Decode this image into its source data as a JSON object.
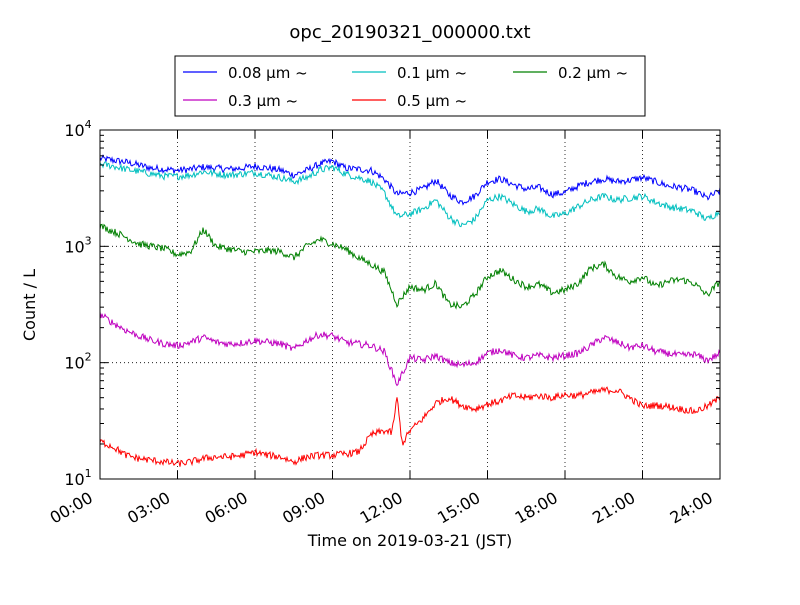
{
  "chart_data": {
    "type": "line",
    "title": "opc_20190321_000000.txt",
    "xlabel": "Time on 2019-03-21 (JST)",
    "ylabel": "Count / L",
    "x_ticks": [
      "00:00",
      "03:00",
      "06:00",
      "09:00",
      "12:00",
      "15:00",
      "18:00",
      "21:00",
      "24:00"
    ],
    "xlim_hours": [
      0,
      24
    ],
    "y_scale": "log",
    "ylim": [
      10,
      10000
    ],
    "y_ticks": [
      {
        "base": "10",
        "exp": "1",
        "value": 10
      },
      {
        "base": "10",
        "exp": "2",
        "value": 100
      },
      {
        "base": "10",
        "exp": "3",
        "value": 1000
      },
      {
        "base": "10",
        "exp": "4",
        "value": 10000
      }
    ],
    "grid": true,
    "legend": "top-center, outside plot",
    "series": [
      {
        "name": "0.08 μm ~",
        "color": "#0000ff",
        "x": [
          0,
          0.5,
          1,
          1.5,
          2,
          2.5,
          3,
          3.5,
          4,
          4.5,
          5,
          5.5,
          6,
          6.5,
          7,
          7.5,
          8,
          8.5,
          9,
          9.5,
          10,
          10.5,
          11,
          11.5,
          12,
          12.5,
          13,
          13.5,
          14,
          14.5,
          15,
          15.5,
          16,
          16.5,
          17,
          17.5,
          18,
          18.5,
          19,
          19.5,
          20,
          20.5,
          21,
          21.5,
          22,
          22.5,
          23,
          23.5,
          24
        ],
        "y": [
          5700,
          5500,
          5300,
          5000,
          4700,
          4600,
          4500,
          4600,
          4800,
          4700,
          4600,
          4700,
          4900,
          4700,
          4500,
          4100,
          4500,
          5100,
          5400,
          4700,
          4600,
          4500,
          3800,
          2800,
          2900,
          3100,
          3700,
          2800,
          2400,
          2700,
          3600,
          3800,
          3400,
          3100,
          3200,
          2800,
          2900,
          3300,
          3600,
          3800,
          3600,
          3700,
          3900,
          3600,
          3300,
          3200,
          3000,
          2600,
          3000
        ]
      },
      {
        "name": "0.1 μm ~",
        "color": "#00bfbf",
        "x": [
          0,
          0.5,
          1,
          1.5,
          2,
          2.5,
          3,
          3.5,
          4,
          4.5,
          5,
          5.5,
          6,
          6.5,
          7,
          7.5,
          8,
          8.5,
          9,
          9.5,
          10,
          10.5,
          11,
          11.5,
          12,
          12.5,
          13,
          13.5,
          14,
          14.5,
          15,
          15.5,
          16,
          16.5,
          17,
          17.5,
          18,
          18.5,
          19,
          19.5,
          20,
          20.5,
          21,
          21.5,
          22,
          22.5,
          23,
          23.5,
          24
        ],
        "y": [
          5100,
          4900,
          4600,
          4400,
          4200,
          4000,
          4000,
          4100,
          4400,
          4200,
          4100,
          4200,
          4300,
          4100,
          3900,
          3600,
          3900,
          4500,
          4800,
          4200,
          3900,
          3600,
          2900,
          1800,
          1900,
          2100,
          2500,
          1800,
          1500,
          1700,
          2500,
          2700,
          2300,
          2000,
          2100,
          1800,
          1900,
          2200,
          2500,
          2700,
          2500,
          2600,
          2700,
          2400,
          2200,
          2100,
          2000,
          1700,
          2000
        ]
      },
      {
        "name": "0.2 μm ~",
        "color": "#008000",
        "x": [
          0,
          0.5,
          1,
          1.5,
          2,
          2.5,
          3,
          3.5,
          4,
          4.5,
          5,
          5.5,
          6,
          6.5,
          7,
          7.5,
          8,
          8.5,
          9,
          9.5,
          10,
          10.5,
          11,
          11.5,
          12,
          12.5,
          13,
          13.5,
          14,
          14.5,
          15,
          15.5,
          16,
          16.5,
          17,
          17.5,
          18,
          18.5,
          19,
          19.5,
          20,
          20.5,
          21,
          21.5,
          22,
          22.5,
          23,
          23.5,
          24
        ],
        "y": [
          1500,
          1350,
          1200,
          1050,
          1000,
          950,
          850,
          900,
          1400,
          1000,
          950,
          900,
          900,
          920,
          900,
          800,
          1000,
          1150,
          1050,
          950,
          800,
          700,
          600,
          320,
          450,
          420,
          480,
          320,
          300,
          380,
          550,
          620,
          520,
          450,
          470,
          400,
          420,
          480,
          650,
          700,
          550,
          500,
          550,
          450,
          500,
          520,
          480,
          380,
          500
        ]
      },
      {
        "name": "0.3 μm ~",
        "color": "#bf00bf",
        "x": [
          0,
          0.5,
          1,
          1.5,
          2,
          2.5,
          3,
          3.5,
          4,
          4.5,
          5,
          5.5,
          6,
          6.5,
          7,
          7.5,
          8,
          8.5,
          9,
          9.5,
          10,
          10.5,
          11,
          11.5,
          12,
          12.5,
          13,
          13.5,
          14,
          14.5,
          15,
          15.5,
          16,
          16.5,
          17,
          17.5,
          18,
          18.5,
          19,
          19.5,
          20,
          20.5,
          21,
          21.5,
          22,
          22.5,
          23,
          23.5,
          24
        ],
        "y": [
          260,
          220,
          190,
          170,
          155,
          145,
          140,
          150,
          165,
          150,
          145,
          148,
          155,
          150,
          145,
          130,
          155,
          175,
          170,
          150,
          145,
          140,
          125,
          65,
          110,
          105,
          115,
          100,
          95,
          100,
          120,
          130,
          115,
          110,
          115,
          110,
          115,
          120,
          140,
          165,
          150,
          135,
          140,
          125,
          120,
          115,
          118,
          105,
          120
        ]
      },
      {
        "name": "0.5 μm ~",
        "color": "#ff0000",
        "x": [
          0,
          0.5,
          1,
          1.5,
          2,
          2.5,
          3,
          3.5,
          4,
          4.5,
          5,
          5.5,
          6,
          6.5,
          7,
          7.5,
          8,
          8.5,
          9,
          9.5,
          10,
          10.5,
          11,
          11.3,
          11.5,
          11.7,
          12,
          12.5,
          13,
          13.5,
          14,
          14.5,
          15,
          15.5,
          16,
          16.5,
          17,
          17.5,
          18,
          18.5,
          19,
          19.5,
          20,
          20.5,
          21,
          21.5,
          22,
          22.5,
          23,
          23.5,
          24
        ],
        "y": [
          21,
          19,
          16,
          15,
          14.5,
          14,
          13.5,
          14,
          15,
          15.5,
          15.5,
          16,
          17,
          16,
          15.5,
          14,
          15.5,
          16,
          16,
          16.5,
          17,
          24,
          26,
          25,
          50,
          20,
          26,
          33,
          45,
          50,
          43,
          40,
          44,
          47,
          52,
          50,
          52,
          50,
          53,
          52,
          55,
          58,
          58,
          50,
          42,
          43,
          42,
          40,
          38,
          42,
          50
        ]
      }
    ]
  }
}
